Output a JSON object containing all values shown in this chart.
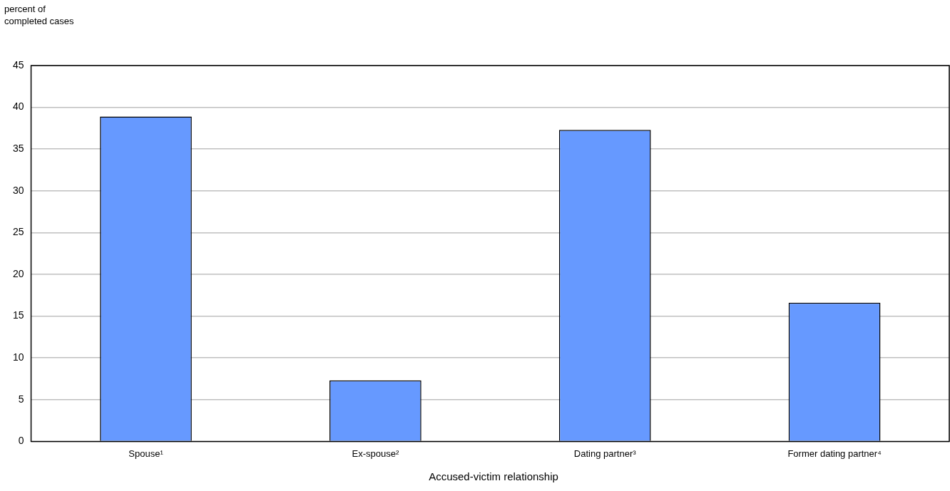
{
  "chart_data": {
    "type": "bar",
    "ylabel": "percent of completed cases",
    "xlabel": "Accused-victim relationship",
    "categories": [
      "Spouse¹",
      "Ex-spouse²",
      "Dating partner³",
      "Former dating partner⁴"
    ],
    "values": [
      38.9,
      7.3,
      37.3,
      16.6
    ],
    "color": "#6699ff",
    "ylim": [
      0,
      45
    ],
    "yticks": [
      0,
      5,
      10,
      15,
      20,
      25,
      30,
      35,
      40,
      45
    ],
    "grid": "y",
    "legend": false
  }
}
